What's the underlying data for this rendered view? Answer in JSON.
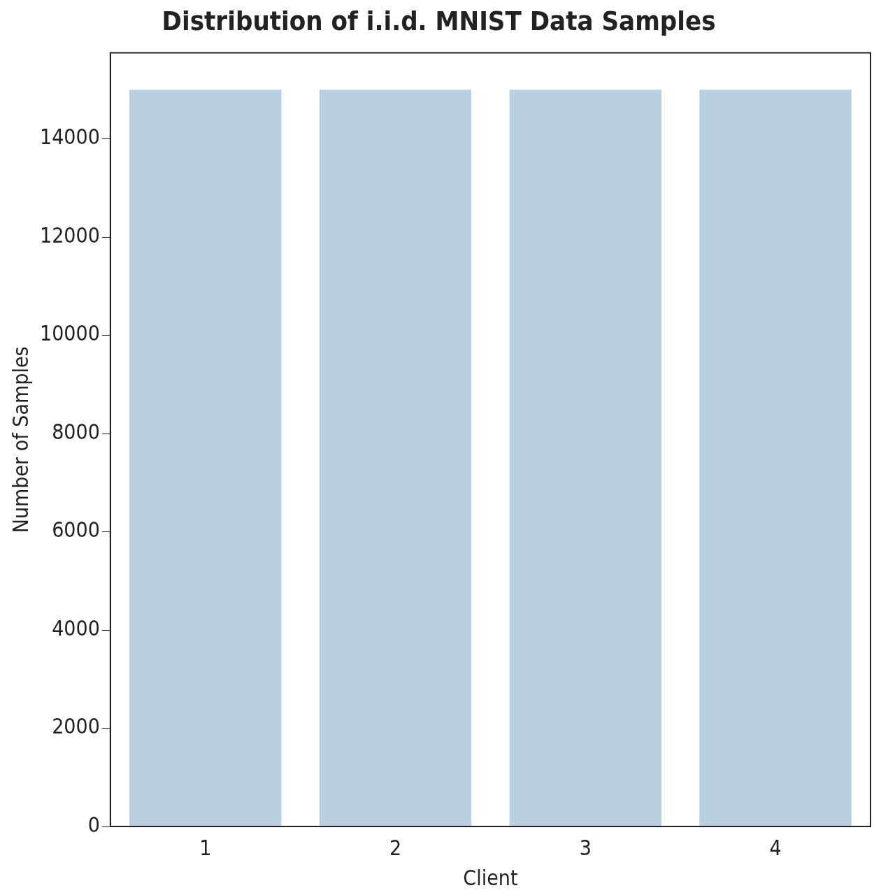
{
  "chart_data": {
    "type": "bar",
    "title": "Distribution of i.i.d. MNIST Data Samples",
    "xlabel": "Client",
    "ylabel": "Number of Samples",
    "categories": [
      "1",
      "2",
      "3",
      "4"
    ],
    "values": [
      15000,
      15000,
      15000,
      15000
    ],
    "color": "#b9d0e0",
    "ylim": [
      0,
      15750
    ],
    "yticks": [
      0,
      2000,
      4000,
      6000,
      8000,
      10000,
      12000,
      14000
    ],
    "grid": false,
    "legend": false
  }
}
